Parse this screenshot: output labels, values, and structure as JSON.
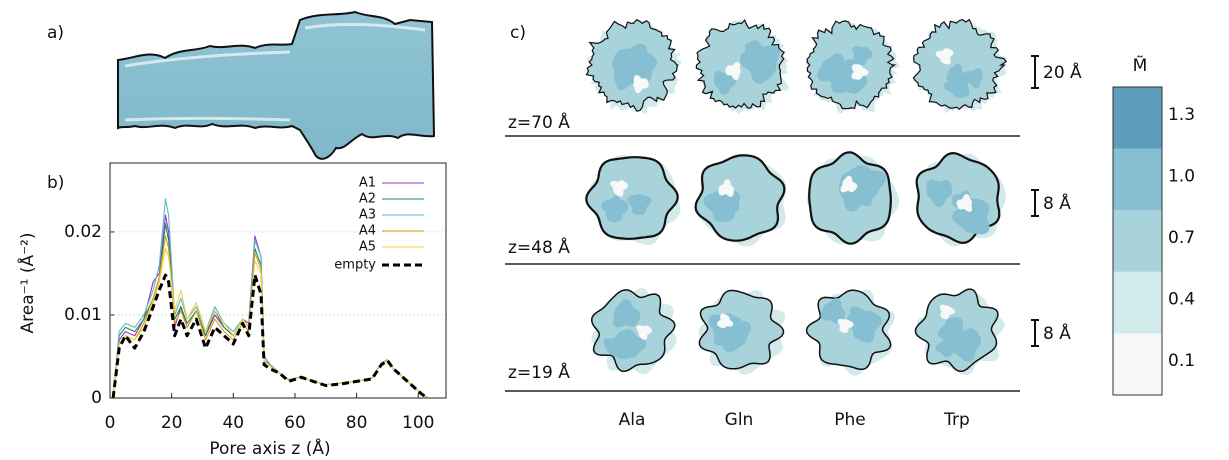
{
  "figure": {
    "panel_labels": [
      "a)",
      "b)",
      "c)"
    ],
    "slices": [
      "z=70 Å",
      "z=48 Å",
      "z=19 Å"
    ],
    "scale_bars": [
      "20 Å",
      "8 Å",
      "8 Å"
    ],
    "residues": [
      "Ala",
      "Gln",
      "Phe",
      "Trp"
    ],
    "colorbar": {
      "title": "M̃",
      "ticks": [
        0.1,
        0.4,
        0.7,
        {
          "value": 1.0,
          "label": "1.0"
        },
        1.3
      ],
      "colors": [
        "#f7f8f8",
        "#d3eaea",
        "#a8d3db",
        "#85bfd1",
        "#5c9cbd"
      ]
    }
  },
  "chart_data": {
    "type": "line",
    "xlabel": "Pore axis z (Å)",
    "ylabel": "Area⁻¹ (Å⁻²)",
    "x": [
      1,
      3,
      5,
      8,
      11,
      14,
      16,
      18,
      19,
      21,
      23,
      25,
      28,
      31,
      34,
      37,
      40,
      43,
      45,
      47,
      49,
      50,
      52,
      55,
      58,
      62,
      66,
      70,
      75,
      80,
      85,
      88,
      90,
      92,
      95,
      98,
      101,
      103
    ],
    "series": [
      {
        "name": "A1",
        "color": "#9b30c8",
        "values": [
          0,
          0.007,
          0.008,
          0.0075,
          0.0095,
          0.014,
          0.015,
          0.022,
          0.02,
          0.0085,
          0.011,
          0.0085,
          0.0105,
          0.0075,
          0.01,
          0.0085,
          0.0075,
          0.0095,
          0.009,
          0.0195,
          0.017,
          0.005,
          0.004,
          0.003,
          0.0022,
          0.0025,
          0.002,
          0.0016,
          0.0018,
          0.002,
          0.0024,
          0.0042,
          0.0046,
          0.0035,
          0.0025,
          0.0015,
          0.0005,
          0
        ]
      },
      {
        "name": "A2",
        "color": "#1a8a5a",
        "values": [
          0,
          0.0075,
          0.0085,
          0.008,
          0.0095,
          0.012,
          0.0145,
          0.021,
          0.019,
          0.0095,
          0.011,
          0.009,
          0.0105,
          0.0075,
          0.0105,
          0.0085,
          0.0075,
          0.0095,
          0.0085,
          0.018,
          0.016,
          0.0045,
          0.004,
          0.003,
          0.0022,
          0.0025,
          0.002,
          0.0016,
          0.0018,
          0.002,
          0.0024,
          0.0042,
          0.0046,
          0.0035,
          0.0025,
          0.0015,
          0.0005,
          0
        ]
      },
      {
        "name": "A3",
        "color": "#5ab8c8",
        "values": [
          0,
          0.008,
          0.009,
          0.0085,
          0.01,
          0.013,
          0.016,
          0.024,
          0.022,
          0.01,
          0.012,
          0.0095,
          0.011,
          0.008,
          0.011,
          0.009,
          0.008,
          0.0095,
          0.0085,
          0.019,
          0.017,
          0.005,
          0.004,
          0.003,
          0.0022,
          0.0025,
          0.002,
          0.0016,
          0.0018,
          0.002,
          0.0024,
          0.0042,
          0.0046,
          0.0035,
          0.0025,
          0.0015,
          0.0005,
          0
        ]
      },
      {
        "name": "A4",
        "color": "#d4a017",
        "values": [
          0,
          0.0065,
          0.0075,
          0.007,
          0.009,
          0.012,
          0.0145,
          0.0195,
          0.018,
          0.009,
          0.0105,
          0.0085,
          0.0105,
          0.007,
          0.0095,
          0.008,
          0.007,
          0.009,
          0.008,
          0.0175,
          0.0155,
          0.0045,
          0.0038,
          0.003,
          0.0021,
          0.0025,
          0.002,
          0.0016,
          0.0018,
          0.002,
          0.0024,
          0.0041,
          0.0045,
          0.0035,
          0.0025,
          0.0015,
          0.0005,
          0
        ]
      },
      {
        "name": "A5",
        "color": "#f0d040",
        "values": [
          0,
          0.0065,
          0.0075,
          0.007,
          0.0085,
          0.0115,
          0.014,
          0.018,
          0.017,
          0.0105,
          0.013,
          0.0095,
          0.0115,
          0.008,
          0.0105,
          0.009,
          0.0075,
          0.0095,
          0.0085,
          0.0165,
          0.015,
          0.0045,
          0.0038,
          0.003,
          0.0021,
          0.0025,
          0.002,
          0.0016,
          0.0018,
          0.002,
          0.0024,
          0.0041,
          0.0045,
          0.0035,
          0.0025,
          0.0015,
          0.0005,
          0
        ]
      },
      {
        "name": "empty",
        "color": "#000000",
        "line_style": "dashed",
        "values": [
          0,
          0.006,
          0.0075,
          0.006,
          0.008,
          0.011,
          0.013,
          0.0148,
          0.014,
          0.0075,
          0.0095,
          0.0075,
          0.0095,
          0.006,
          0.0085,
          0.0075,
          0.0065,
          0.009,
          0.0075,
          0.0148,
          0.0125,
          0.004,
          0.0035,
          0.003,
          0.002,
          0.0025,
          0.002,
          0.0015,
          0.0017,
          0.002,
          0.0023,
          0.004,
          0.0045,
          0.0035,
          0.0025,
          0.0015,
          0.0005,
          0
        ]
      }
    ],
    "xlim": [
      0,
      109
    ],
    "xticks": [
      0,
      20,
      40,
      60,
      80,
      100
    ],
    "ylim": [
      0,
      0.0283
    ],
    "yticks": [
      0,
      0.01,
      0.02
    ],
    "grid": true,
    "legend": "upper right"
  }
}
